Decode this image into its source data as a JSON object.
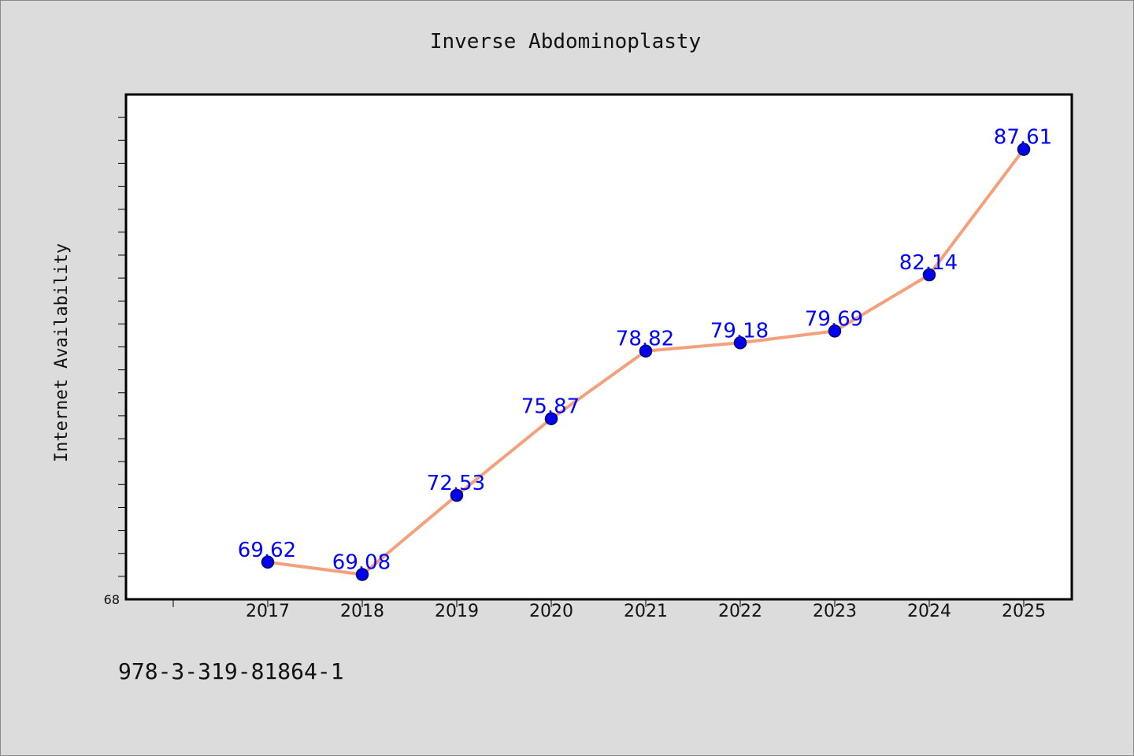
{
  "figure": {
    "footer_text": "978-3-319-81864-1"
  },
  "chart_data": {
    "type": "line",
    "title": "Inverse Abdominoplasty",
    "xlabel": "",
    "ylabel": "Internet Availability",
    "categories": [
      "2017",
      "2018",
      "2019",
      "2020",
      "2021",
      "2022",
      "2023",
      "2024",
      "2025"
    ],
    "series": [
      {
        "values": [
          69.62,
          69.08,
          72.53,
          75.87,
          78.82,
          79.18,
          79.69,
          82.14,
          87.61
        ],
        "value_labels": [
          "69.62",
          "69.08",
          "72.53",
          "75.87",
          "78.82",
          "79.18",
          "79.69",
          "82.14",
          "87.61"
        ]
      }
    ],
    "y_tick_labels": [
      "68"
    ],
    "ylim": [
      68,
      90
    ],
    "grid": false,
    "legend": "none",
    "colors": {
      "line": "#f4a07a",
      "marker": "#0000ee",
      "marker_edge": "#000066",
      "data_label": "#0000ff",
      "plot_bg": "#ffffff",
      "figure_bg": "#dcdcdc"
    }
  }
}
